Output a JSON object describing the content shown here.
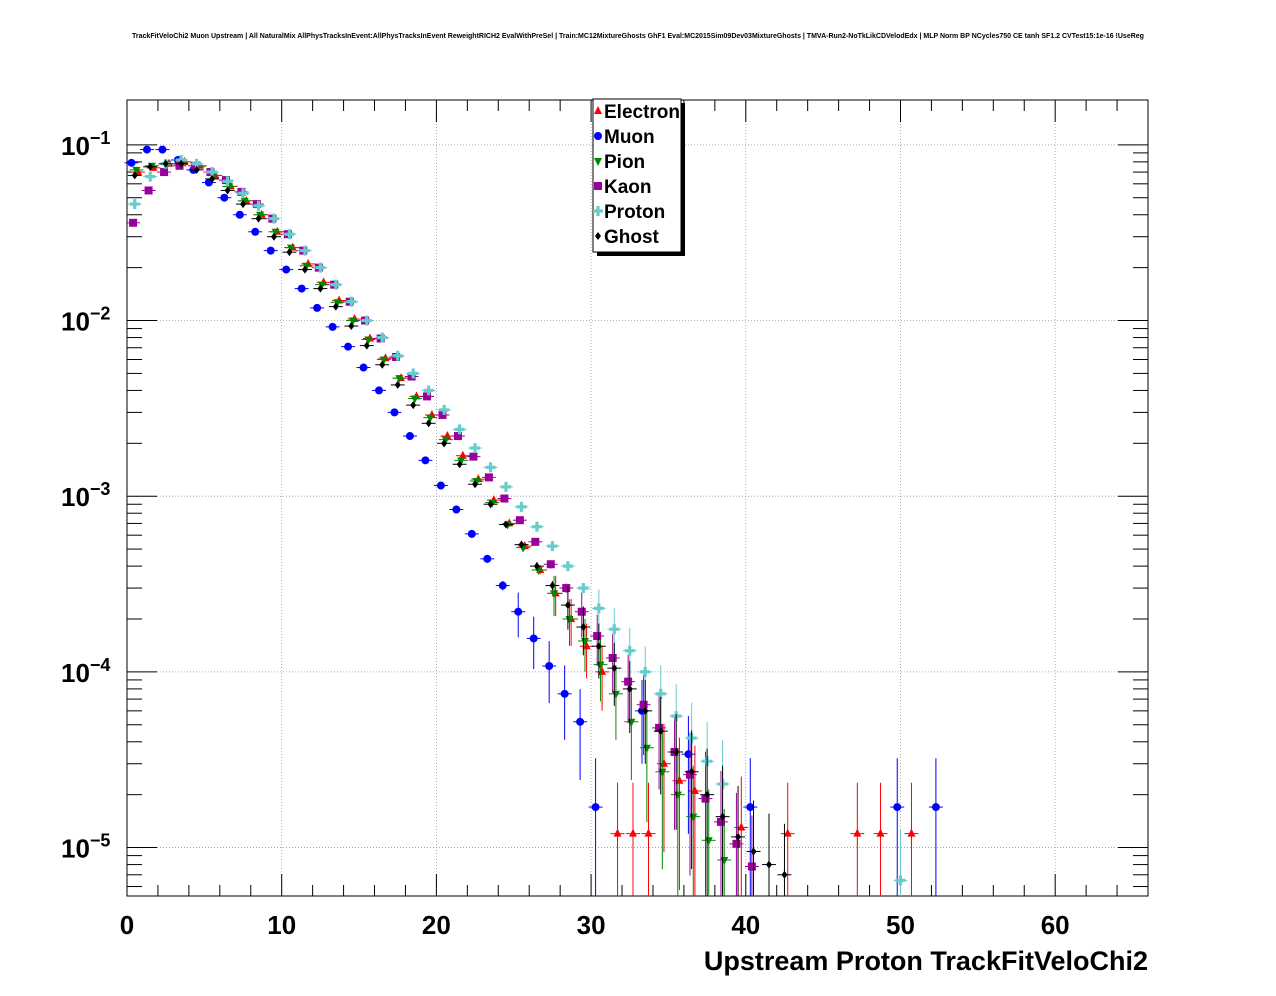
{
  "title": "TrackFitVeloChi2 Muon Upstream | All NaturalMix AllPhysTracksInEvent:AllPhysTracksInEvent ReweightRICH2 EvalWithPreSel | Train:MC12MixtureGhosts GhF1 Eval:MC2015Sim09Dev03MixtureGhosts | TMVA-Run2-NoTkLikCDVelodEdx | MLP Norm BP NCycles750 CE tanh SF1.2 CVTest15:1e-16 !UseReg",
  "chart_data": {
    "type": "scatter",
    "xlabel": "Upstream Proton TrackFitVeloChi2",
    "ylabel": "",
    "xlim": [
      0,
      66
    ],
    "ylim": [
      5.3e-06,
      0.18
    ],
    "yscale": "log",
    "grid": true,
    "legend_position": "top-center",
    "x_ticks": [
      0,
      10,
      20,
      30,
      40,
      50,
      60
    ],
    "x_tick_labels": [
      "0",
      "10",
      "20",
      "30",
      "40",
      "50",
      "60"
    ],
    "y_ticks": [
      1e-05,
      0.0001,
      0.001,
      0.01,
      0.1
    ],
    "y_tick_labels": [
      {
        "base": "10",
        "exp": "−5"
      },
      {
        "base": "10",
        "exp": "−4"
      },
      {
        "base": "10",
        "exp": "−3"
      },
      {
        "base": "10",
        "exp": "−2"
      },
      {
        "base": "10",
        "exp": "−1"
      }
    ],
    "series": [
      {
        "name": "Electron",
        "color": "#ff0000",
        "marker": "triangle-up",
        "offset": 0.6,
        "points": [
          [
            0,
            0.07
          ],
          [
            1,
            0.074
          ],
          [
            2,
            0.078
          ],
          [
            3,
            0.08
          ],
          [
            4,
            0.076
          ],
          [
            5,
            0.067
          ],
          [
            6,
            0.058
          ],
          [
            7,
            0.048
          ],
          [
            8,
            0.04
          ],
          [
            9,
            0.032
          ],
          [
            10,
            0.026
          ],
          [
            11,
            0.021
          ],
          [
            12,
            0.0165
          ],
          [
            13,
            0.013
          ],
          [
            14,
            0.0102
          ],
          [
            15,
            0.0079
          ],
          [
            16,
            0.0061
          ],
          [
            17,
            0.0047
          ],
          [
            18,
            0.0037
          ],
          [
            19,
            0.0029
          ],
          [
            20,
            0.0022
          ],
          [
            21,
            0.0017
          ],
          [
            22,
            0.00125
          ],
          [
            23,
            0.00095
          ],
          [
            24,
            0.0007
          ],
          [
            25,
            0.00052
          ],
          [
            26,
            0.00038
          ],
          [
            27,
            0.00028
          ],
          [
            28,
            0.0002
          ],
          [
            29,
            0.00014
          ],
          [
            30,
            0.0001
          ],
          [
            31,
            1.2e-05
          ],
          [
            32,
            1.2e-05
          ],
          [
            33,
            1.2e-05
          ],
          [
            34,
            3e-05
          ],
          [
            35,
            2.4e-05
          ],
          [
            36,
            2.1e-05
          ],
          [
            39,
            1.3e-05
          ],
          [
            42,
            1.2e-05
          ],
          [
            46.5,
            1.2e-05
          ],
          [
            48,
            1.2e-05
          ],
          [
            50,
            1.2e-05
          ]
        ]
      },
      {
        "name": "Muon",
        "color": "#0000ff",
        "marker": "circle",
        "offset": -0.6,
        "points": [
          [
            0,
            0.079
          ],
          [
            1,
            0.094
          ],
          [
            2,
            0.094
          ],
          [
            3,
            0.082
          ],
          [
            4,
            0.072
          ],
          [
            5,
            0.061
          ],
          [
            6,
            0.05
          ],
          [
            7,
            0.04
          ],
          [
            8,
            0.032
          ],
          [
            9,
            0.025
          ],
          [
            10,
            0.0195
          ],
          [
            11,
            0.0152
          ],
          [
            12,
            0.0118
          ],
          [
            13,
            0.0092
          ],
          [
            14,
            0.0071
          ],
          [
            15,
            0.0054
          ],
          [
            16,
            0.004
          ],
          [
            17,
            0.003
          ],
          [
            18,
            0.0022
          ],
          [
            19,
            0.0016
          ],
          [
            20,
            0.00115
          ],
          [
            21,
            0.00084
          ],
          [
            22,
            0.00061
          ],
          [
            23,
            0.00044
          ],
          [
            24,
            0.00031
          ],
          [
            25,
            0.00022
          ],
          [
            26,
            0.000155
          ],
          [
            27,
            0.000108
          ],
          [
            28,
            7.5e-05
          ],
          [
            29,
            5.2e-05
          ],
          [
            30,
            1.7e-05
          ],
          [
            33,
            6e-05
          ],
          [
            36,
            3.4e-05
          ],
          [
            40,
            1.7e-05
          ],
          [
            49.5,
            1.7e-05
          ],
          [
            52,
            1.7e-05
          ]
        ]
      },
      {
        "name": "Pion",
        "color": "#008800",
        "marker": "triangle-down",
        "offset": 0.3,
        "points": [
          [
            0,
            0.072
          ],
          [
            1,
            0.076
          ],
          [
            2,
            0.078
          ],
          [
            3,
            0.08
          ],
          [
            4,
            0.075
          ],
          [
            5,
            0.067
          ],
          [
            6,
            0.058
          ],
          [
            7,
            0.048
          ],
          [
            8,
            0.04
          ],
          [
            9,
            0.032
          ],
          [
            10,
            0.026
          ],
          [
            11,
            0.0205
          ],
          [
            12,
            0.016
          ],
          [
            13,
            0.0127
          ],
          [
            14,
            0.01
          ],
          [
            15,
            0.0078
          ],
          [
            16,
            0.006
          ],
          [
            17,
            0.0047
          ],
          [
            18,
            0.0036
          ],
          [
            19,
            0.0028
          ],
          [
            20,
            0.0021
          ],
          [
            21,
            0.0016
          ],
          [
            22,
            0.00122
          ],
          [
            23,
            0.00092
          ],
          [
            24,
            0.00069
          ],
          [
            25,
            0.00051
          ],
          [
            26,
            0.00038
          ],
          [
            27,
            0.00028
          ],
          [
            28,
            0.0002
          ],
          [
            29,
            0.00015
          ],
          [
            30,
            0.00011
          ],
          [
            31,
            7.5e-05
          ],
          [
            32,
            5.2e-05
          ],
          [
            33,
            3.7e-05
          ],
          [
            34,
            2.7e-05
          ],
          [
            35,
            2e-05
          ],
          [
            36,
            1.5e-05
          ],
          [
            37,
            1.1e-05
          ],
          [
            38,
            8.5e-06
          ]
        ]
      },
      {
        "name": "Kaon",
        "color": "#990099",
        "marker": "square",
        "offset": -0.3,
        "points": [
          [
            0,
            0.036
          ],
          [
            1,
            0.055
          ],
          [
            2,
            0.07
          ],
          [
            3,
            0.076
          ],
          [
            4,
            0.076
          ],
          [
            5,
            0.07
          ],
          [
            6,
            0.063
          ],
          [
            7,
            0.054
          ],
          [
            8,
            0.046
          ],
          [
            9,
            0.038
          ],
          [
            10,
            0.031
          ],
          [
            11,
            0.025
          ],
          [
            12,
            0.02
          ],
          [
            13,
            0.016
          ],
          [
            14,
            0.0128
          ],
          [
            15,
            0.01
          ],
          [
            16,
            0.0079
          ],
          [
            17,
            0.0062
          ],
          [
            18,
            0.0048
          ],
          [
            19,
            0.0037
          ],
          [
            20,
            0.0029
          ],
          [
            21,
            0.0022
          ],
          [
            22,
            0.00168
          ],
          [
            23,
            0.00128
          ],
          [
            24,
            0.00097
          ],
          [
            25,
            0.00073
          ],
          [
            26,
            0.00055
          ],
          [
            27,
            0.00041
          ],
          [
            28,
            0.0003
          ],
          [
            29,
            0.00022
          ],
          [
            30,
            0.00016
          ],
          [
            31,
            0.00012
          ],
          [
            32,
            8.8e-05
          ],
          [
            33,
            6.5e-05
          ],
          [
            34,
            4.8e-05
          ],
          [
            35,
            3.5e-05
          ],
          [
            36,
            2.6e-05
          ],
          [
            37,
            1.9e-05
          ],
          [
            38,
            1.4e-05
          ],
          [
            39,
            1.05e-05
          ],
          [
            40,
            7.8e-06
          ]
        ]
      },
      {
        "name": "Proton",
        "color": "#66cccc",
        "marker": "cross",
        "offset": 0.0,
        "points": [
          [
            0,
            0.046
          ],
          [
            1,
            0.066
          ],
          [
            2,
            0.078
          ],
          [
            3,
            0.082
          ],
          [
            4,
            0.078
          ],
          [
            5,
            0.07
          ],
          [
            6,
            0.062
          ],
          [
            7,
            0.053
          ],
          [
            8,
            0.045
          ],
          [
            9,
            0.038
          ],
          [
            10,
            0.031
          ],
          [
            11,
            0.025
          ],
          [
            12,
            0.02
          ],
          [
            13,
            0.016
          ],
          [
            14,
            0.0128
          ],
          [
            15,
            0.01
          ],
          [
            16,
            0.008
          ],
          [
            17,
            0.0063
          ],
          [
            18,
            0.005
          ],
          [
            19,
            0.004
          ],
          [
            20,
            0.0031
          ],
          [
            21,
            0.0024
          ],
          [
            22,
            0.00188
          ],
          [
            23,
            0.00146
          ],
          [
            24,
            0.00113
          ],
          [
            25,
            0.00087
          ],
          [
            26,
            0.00067
          ],
          [
            27,
            0.00052
          ],
          [
            28,
            0.0004
          ],
          [
            29,
            0.0003
          ],
          [
            30,
            0.00023
          ],
          [
            31,
            0.000175
          ],
          [
            32,
            0.000132
          ],
          [
            33,
            0.0001
          ],
          [
            34,
            7.5e-05
          ],
          [
            35,
            5.6e-05
          ],
          [
            36,
            4.2e-05
          ],
          [
            37,
            3.1e-05
          ],
          [
            38,
            2.3e-05
          ],
          [
            49.5,
            6.5e-06
          ]
        ]
      },
      {
        "name": "Ghost",
        "color": "#000000",
        "marker": "diamond",
        "offset": 0.0,
        "points": [
          [
            0,
            0.067
          ],
          [
            1,
            0.075
          ],
          [
            2,
            0.078
          ],
          [
            3,
            0.078
          ],
          [
            4,
            0.072
          ],
          [
            5,
            0.064
          ],
          [
            6,
            0.055
          ],
          [
            7,
            0.046
          ],
          [
            8,
            0.038
          ],
          [
            9,
            0.03
          ],
          [
            10,
            0.0245
          ],
          [
            11,
            0.0195
          ],
          [
            12,
            0.0152
          ],
          [
            13,
            0.012
          ],
          [
            14,
            0.0093
          ],
          [
            15,
            0.0072
          ],
          [
            16,
            0.0056
          ],
          [
            17,
            0.0043
          ],
          [
            18,
            0.0033
          ],
          [
            19,
            0.0026
          ],
          [
            20,
            0.002
          ],
          [
            21,
            0.00152
          ],
          [
            22,
            0.00117
          ],
          [
            23,
            0.0009
          ],
          [
            24,
            0.00069
          ],
          [
            25,
            0.00053
          ],
          [
            26,
            0.0004
          ],
          [
            27,
            0.00031
          ],
          [
            28,
            0.00024
          ],
          [
            29,
            0.00018
          ],
          [
            30,
            0.00014
          ],
          [
            31,
            0.000105
          ],
          [
            32,
            8e-05
          ],
          [
            33,
            6e-05
          ],
          [
            34,
            4.6e-05
          ],
          [
            35,
            3.5e-05
          ],
          [
            36,
            2.7e-05
          ],
          [
            37,
            2e-05
          ],
          [
            38,
            1.5e-05
          ],
          [
            39,
            1.15e-05
          ],
          [
            40,
            9.5e-06
          ],
          [
            41,
            8e-06
          ],
          [
            42,
            7e-06
          ]
        ]
      }
    ]
  }
}
